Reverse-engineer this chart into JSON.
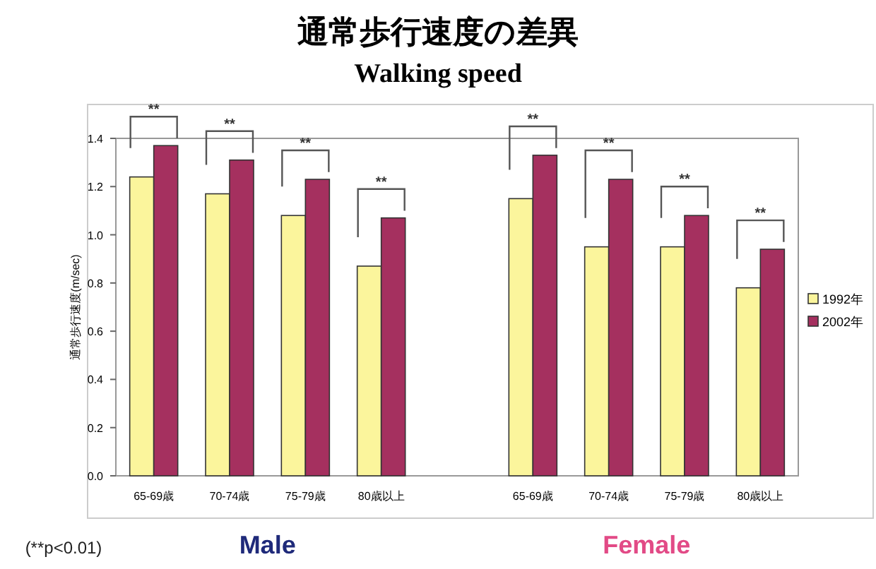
{
  "chart_data": {
    "type": "bar",
    "title": "通常歩行速度の差異",
    "subtitle": "Walking speed",
    "ylabel": "通常歩行速度(m/sec)",
    "categories": [
      "65-69歳",
      "70-74歳",
      "75-79歳",
      "80歳以上",
      null,
      "65-69歳",
      "70-74歳",
      "75-79歳",
      "80歳以上"
    ],
    "series": [
      {
        "name": "1992年",
        "color": "#fbf59c",
        "values": [
          1.24,
          1.17,
          1.08,
          0.87,
          null,
          1.15,
          0.95,
          0.95,
          0.78
        ]
      },
      {
        "name": "2002年",
        "color": "#a5305f",
        "values": [
          1.37,
          1.31,
          1.23,
          1.07,
          null,
          1.33,
          1.23,
          1.08,
          0.94
        ]
      }
    ],
    "ylim": [
      0,
      1.4
    ],
    "yticks": [
      {
        "value": 0,
        "label": "0.0"
      },
      {
        "value": 0.2,
        "label": "0.2"
      },
      {
        "value": 0.4,
        "label": "0.4"
      },
      {
        "value": 0.6,
        "label": "0.6"
      },
      {
        "value": 0.8,
        "label": "0.8"
      },
      {
        "value": 1.0,
        "label": "1.0"
      },
      {
        "value": 1.2,
        "label": "1.2"
      },
      {
        "value": 1.4,
        "label": "1.4"
      }
    ],
    "legend": "right",
    "annotations": [
      "**",
      "**",
      "**",
      "**",
      "**",
      "**",
      "**",
      "**",
      "(**p<0.01)",
      "Male",
      "Female"
    ]
  }
}
